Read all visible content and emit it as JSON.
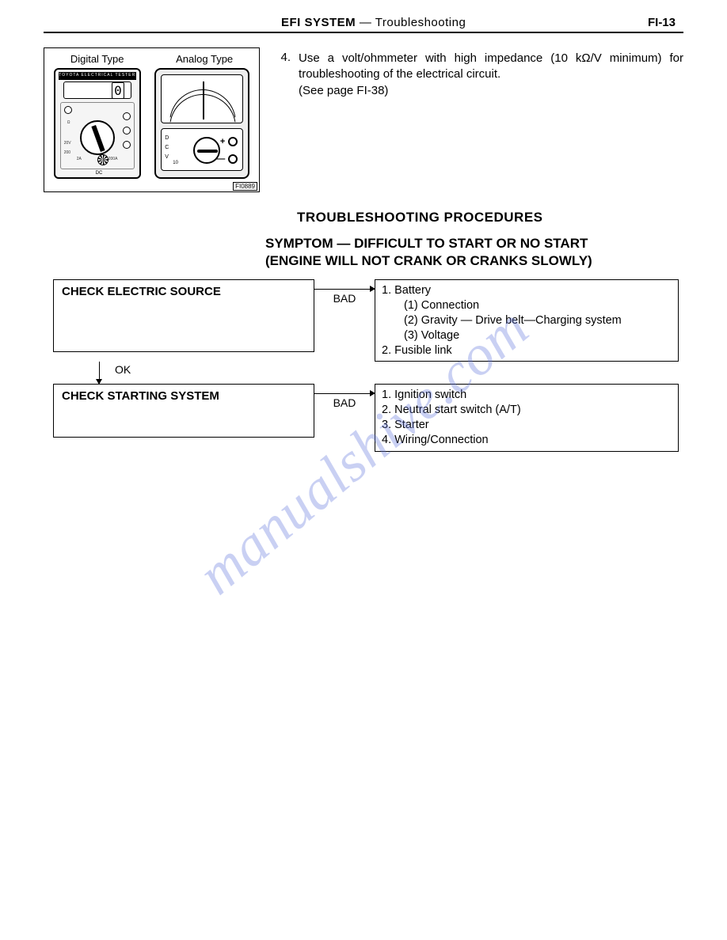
{
  "header": {
    "title_bold": "EFI SYSTEM",
    "title_sep": " — ",
    "title_light": "Troubleshooting",
    "page": "FI-13"
  },
  "figure": {
    "label_left": "Digital Type",
    "label_right": "Analog Type",
    "id": "FI0889",
    "digital_brand": "TOYOTA  ELECTRICAL  TESTER",
    "digital_readout": "0",
    "dc_label": "DC",
    "dial_marks": {
      "a": "Ω",
      "b": "20V",
      "c": "200",
      "d": "2A",
      "e": "200A"
    },
    "analog_scale": {
      "d": "D",
      "c": "C",
      "v": "V",
      "ten": "10"
    },
    "plus": "+",
    "minus": "—"
  },
  "step": {
    "num": "4.",
    "line1": "Use a volt/ohmmeter with high impedance (10 kΩ/V minimum) for troubleshooting of the electrical circuit.",
    "line2": "(See page FI-38)"
  },
  "headings": {
    "procedures": "TROUBLESHOOTING PROCEDURES",
    "symptom1": "SYMPTOM — DIFFICULT TO START OR NO START",
    "symptom2": "(ENGINE WILL NOT CRANK OR CRANKS SLOWLY)"
  },
  "flow": {
    "bad": "BAD",
    "ok": "OK",
    "step1": {
      "left": "CHECK ELECTRIC SOURCE",
      "right": {
        "l1": "1. Battery",
        "l2": "(1) Connection",
        "l3": "(2) Gravity — Drive belt—Charging system",
        "l4": "(3) Voltage",
        "l5": "2. Fusible link"
      }
    },
    "step2": {
      "left": "CHECK STARTING SYSTEM",
      "right": {
        "l1": "1. Ignition switch",
        "l2": "2. Neutral start switch (A/T)",
        "l3": "3. Starter",
        "l4": "4. Wiring/Connection"
      }
    }
  },
  "watermark": "manualshive.com",
  "colors": {
    "text": "#000000",
    "bg": "#ffffff",
    "watermark": "rgba(100,120,220,0.35)"
  }
}
